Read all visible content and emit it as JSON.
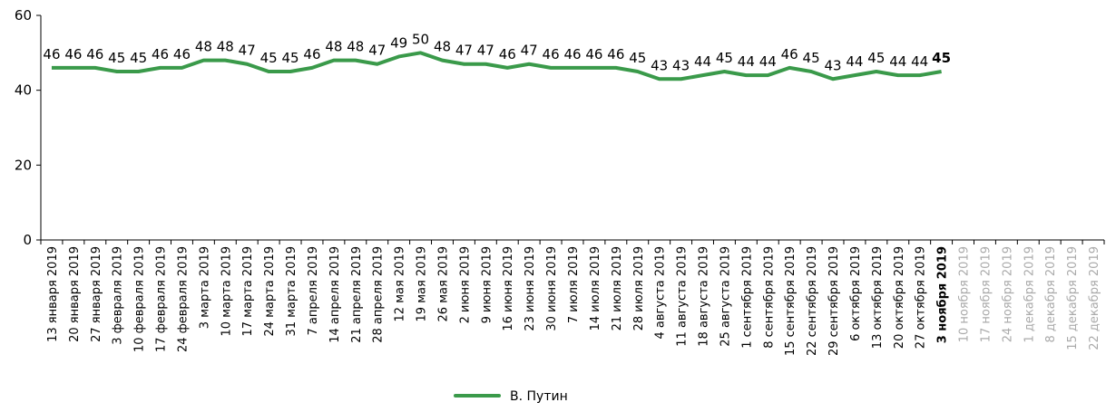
{
  "chart_data": {
    "type": "line",
    "categories": [
      "13 января 2019",
      "20 января 2019",
      "27 января 2019",
      "3 февраля 2019",
      "10 февраля 2019",
      "17 февраля 2019",
      "24 февраля 2019",
      "3 марта 2019",
      "10 марта 2019",
      "17 марта 2019",
      "24 марта 2019",
      "31 марта 2019",
      "7 апреля 2019",
      "14 апреля 2019",
      "21 апреля 2019",
      "28 апреля 2019",
      "12 мая 2019",
      "19 мая 2019",
      "26 мая 2019",
      "2 июня 2019",
      "9 июня 2019",
      "16 июня 2019",
      "23 июня 2019",
      "30 июня 2019",
      "7 июля 2019",
      "14 июля 2019",
      "21 июля 2019",
      "28 июля 2019",
      "4 августа 2019",
      "11 августа 2019",
      "18 августа 2019",
      "25 августа 2019",
      "1 сентября 2019",
      "8 сентября 2019",
      "15 сентября 2019",
      "22 сентября 2019",
      "29 сентября 2019",
      "6 октября 2019",
      "13 октября 2019",
      "20 октября 2019",
      "27 октября 2019",
      "3 ноября 2019",
      "10 ноября 2019",
      "17 ноября 2019",
      "24 ноября 2019",
      "1 декабря 2019",
      "8 декабря 2019",
      "15 декабря 2019",
      "22 декабря 2019"
    ],
    "series": [
      {
        "name": "В. Путин",
        "color": "#3a9a4a",
        "values": [
          46,
          46,
          46,
          45,
          45,
          46,
          46,
          48,
          48,
          47,
          45,
          45,
          46,
          48,
          48,
          47,
          49,
          50,
          48,
          47,
          47,
          46,
          47,
          46,
          46,
          46,
          46,
          45,
          43,
          43,
          44,
          45,
          44,
          44,
          46,
          45,
          43,
          44,
          45,
          44,
          44,
          45,
          null,
          null,
          null,
          null,
          null,
          null,
          null
        ]
      }
    ],
    "ylim": [
      0,
      60
    ],
    "yticks": [
      0,
      20,
      40,
      60
    ],
    "legend": "bottom"
  }
}
